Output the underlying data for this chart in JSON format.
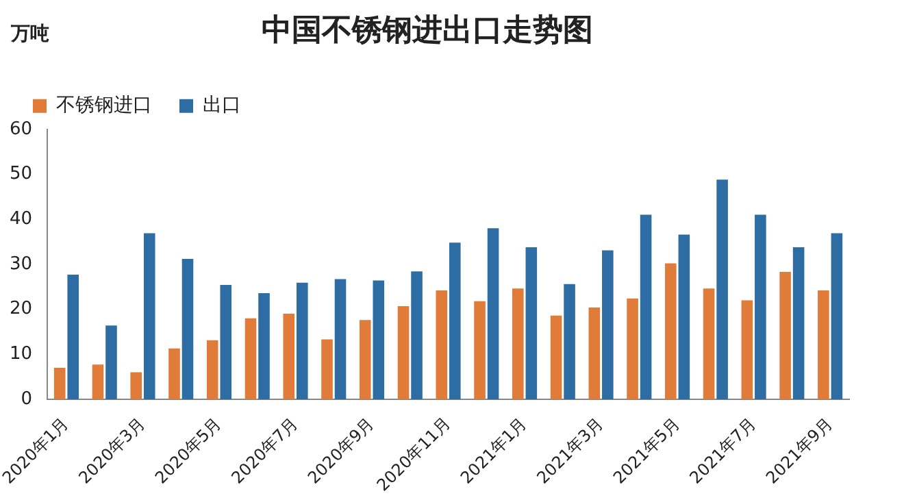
{
  "chart_data": {
    "type": "bar",
    "title": "中国不锈钢进出口走势图",
    "ylabel": "万吨",
    "categories": [
      "2020年1月",
      null,
      "2020年3月",
      null,
      "2020年5月",
      null,
      "2020年7月",
      null,
      "2020年9月",
      null,
      "2020年11月",
      null,
      "2021年1月",
      null,
      "2021年3月",
      null,
      "2021年5月",
      null,
      "2021年7月",
      null,
      "2021年9月"
    ],
    "series": [
      {
        "name": "不锈钢进口",
        "color": "#e07b39",
        "values": [
          7,
          7.7,
          6,
          11.3,
          13.1,
          18,
          19,
          13.3,
          17.6,
          20.7,
          24.2,
          21.8,
          24.6,
          18.6,
          20.4,
          22.4,
          30.2,
          24.6,
          22,
          28.3,
          24.2
        ]
      },
      {
        "name": "出口",
        "color": "#2e6da4",
        "values": [
          27.7,
          16.4,
          36.9,
          31.2,
          25.4,
          23.6,
          25.9,
          26.7,
          26.4,
          28.4,
          34.8,
          38,
          33.8,
          25.6,
          33.1,
          41,
          36.6,
          48.8,
          41,
          33.8,
          36.9
        ]
      }
    ],
    "ylim": [
      0,
      60
    ],
    "yticks": [
      0,
      10,
      20,
      30,
      40,
      50,
      60
    ],
    "grid": false,
    "legend": "top left"
  }
}
